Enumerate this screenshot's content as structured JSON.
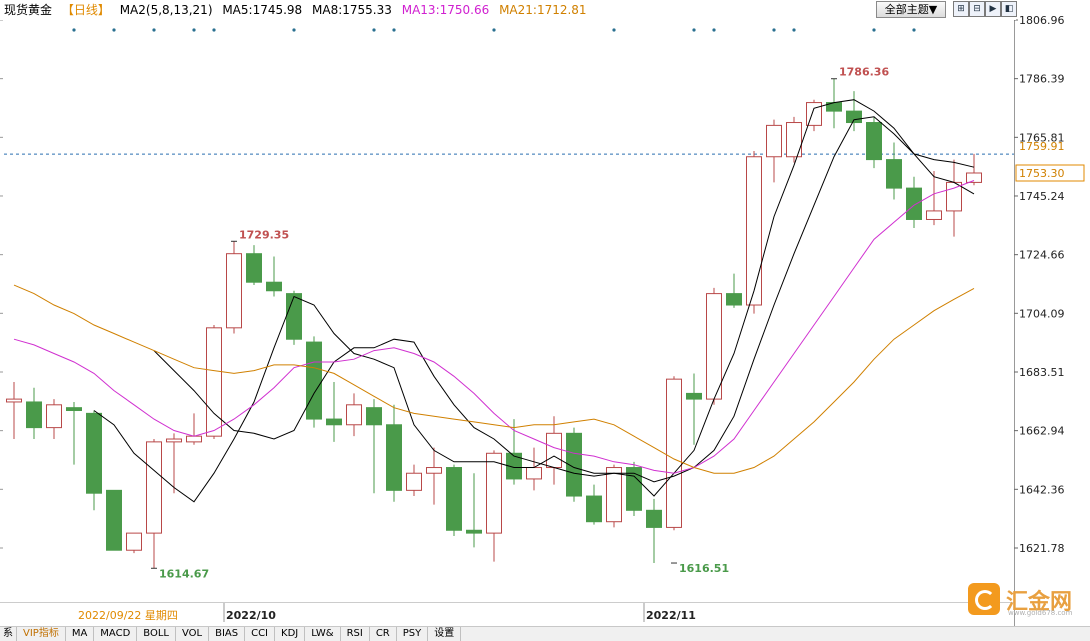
{
  "header": {
    "instrument": "现货黄金",
    "period": "【日线】",
    "ma2_label": "MA2(5,8,13,21)",
    "ma5_label": "MA5:1745.98",
    "ma8_label": "MA8:1755.33",
    "ma13_label": "MA13:1750.66",
    "ma21_label": "MA21:1712.81",
    "theme_button": "全部主题▼"
  },
  "footer": {
    "date_label": "2022/09/22 星期四",
    "tabs": [
      "系",
      "VIP指标",
      "MA",
      "MACD",
      "BOLL",
      "VOL",
      "BIAS",
      "CCI",
      "KDJ",
      "LW&",
      "RSI",
      "CR",
      "PSY",
      "设置"
    ]
  },
  "logo": {
    "text": "汇金网",
    "sub": "www.gold678.com"
  },
  "colors": {
    "up": "#b84848",
    "down": "#4a9a4a",
    "ma5": "#000000",
    "ma8": "#000000",
    "ma13": "#d030d0",
    "ma21": "#d08000"
  },
  "chart_data": {
    "type": "candlestick",
    "yaxis_ticks": [
      "1806.96",
      "1786.39",
      "1765.81",
      "1745.24",
      "1724.66",
      "1704.09",
      "1683.51",
      "1662.94",
      "1642.36",
      "1621.78"
    ],
    "ylim": [
      1612,
      1812
    ],
    "xaxis_labels": [
      {
        "label": "2022/10",
        "index": 11
      },
      {
        "label": "2022/11",
        "index": 32
      }
    ],
    "price_tags": {
      "upper": "1759.91",
      "current": "1753.30"
    },
    "annotations": [
      {
        "text": "1614.67",
        "index": 7,
        "value": 1614.67,
        "kind": "low"
      },
      {
        "text": "1729.35",
        "index": 11,
        "value": 1729.35,
        "kind": "high"
      },
      {
        "text": "1616.51",
        "index": 33,
        "value": 1616.51,
        "kind": "low"
      },
      {
        "text": "1786.36",
        "index": 41,
        "value": 1786.36,
        "kind": "high"
      }
    ],
    "candles": [
      {
        "o": 1673,
        "h": 1680,
        "l": 1660,
        "c": 1674
      },
      {
        "o": 1673,
        "h": 1678,
        "l": 1660,
        "c": 1664
      },
      {
        "o": 1664,
        "h": 1674,
        "l": 1660,
        "c": 1672
      },
      {
        "o": 1671,
        "h": 1673,
        "l": 1651,
        "c": 1670
      },
      {
        "o": 1669,
        "h": 1670,
        "l": 1635,
        "c": 1641
      },
      {
        "o": 1642,
        "h": 1642,
        "l": 1621,
        "c": 1621
      },
      {
        "o": 1621,
        "h": 1627,
        "l": 1620,
        "c": 1627
      },
      {
        "o": 1627,
        "h": 1660,
        "l": 1614.67,
        "c": 1659
      },
      {
        "o": 1659,
        "h": 1662,
        "l": 1641,
        "c": 1660
      },
      {
        "o": 1659,
        "h": 1669,
        "l": 1658,
        "c": 1661
      },
      {
        "o": 1661,
        "h": 1700,
        "l": 1660,
        "c": 1699
      },
      {
        "o": 1699,
        "h": 1729.35,
        "l": 1697,
        "c": 1725
      },
      {
        "o": 1725,
        "h": 1728,
        "l": 1714,
        "c": 1715
      },
      {
        "o": 1715,
        "h": 1724,
        "l": 1710,
        "c": 1712
      },
      {
        "o": 1711,
        "h": 1712,
        "l": 1693,
        "c": 1695
      },
      {
        "o": 1694,
        "h": 1696,
        "l": 1664,
        "c": 1667
      },
      {
        "o": 1667,
        "h": 1680,
        "l": 1659,
        "c": 1665
      },
      {
        "o": 1665,
        "h": 1676,
        "l": 1661,
        "c": 1672
      },
      {
        "o": 1671,
        "h": 1674,
        "l": 1641,
        "c": 1665
      },
      {
        "o": 1665,
        "h": 1672,
        "l": 1638,
        "c": 1642
      },
      {
        "o": 1642,
        "h": 1651,
        "l": 1640,
        "c": 1648
      },
      {
        "o": 1648,
        "h": 1657,
        "l": 1637,
        "c": 1650
      },
      {
        "o": 1650,
        "h": 1651,
        "l": 1626,
        "c": 1628
      },
      {
        "o": 1628,
        "h": 1648,
        "l": 1622,
        "c": 1627
      },
      {
        "o": 1627,
        "h": 1656,
        "l": 1617,
        "c": 1655
      },
      {
        "o": 1655,
        "h": 1667,
        "l": 1644,
        "c": 1646
      },
      {
        "o": 1646,
        "h": 1657,
        "l": 1642,
        "c": 1650
      },
      {
        "o": 1650,
        "h": 1668,
        "l": 1644,
        "c": 1662
      },
      {
        "o": 1662,
        "h": 1664,
        "l": 1638,
        "c": 1640
      },
      {
        "o": 1640,
        "h": 1644,
        "l": 1630,
        "c": 1631
      },
      {
        "o": 1631,
        "h": 1651,
        "l": 1629,
        "c": 1650
      },
      {
        "o": 1650,
        "h": 1652,
        "l": 1633,
        "c": 1635
      },
      {
        "o": 1635,
        "h": 1639,
        "l": 1616.51,
        "c": 1629
      },
      {
        "o": 1629,
        "h": 1682,
        "l": 1628,
        "c": 1681
      },
      {
        "o": 1676,
        "h": 1683,
        "l": 1658,
        "c": 1674
      },
      {
        "o": 1674,
        "h": 1713,
        "l": 1672,
        "c": 1711
      },
      {
        "o": 1711,
        "h": 1718,
        "l": 1706,
        "c": 1707
      },
      {
        "o": 1707,
        "h": 1761,
        "l": 1704,
        "c": 1759
      },
      {
        "o": 1759,
        "h": 1772,
        "l": 1750,
        "c": 1770
      },
      {
        "o": 1759,
        "h": 1773,
        "l": 1757,
        "c": 1771
      },
      {
        "o": 1770,
        "h": 1779,
        "l": 1768,
        "c": 1778
      },
      {
        "o": 1778,
        "h": 1786.36,
        "l": 1769,
        "c": 1775
      },
      {
        "o": 1775,
        "h": 1782,
        "l": 1768,
        "c": 1771
      },
      {
        "o": 1771,
        "h": 1773,
        "l": 1755,
        "c": 1758
      },
      {
        "o": 1758,
        "h": 1764,
        "l": 1744,
        "c": 1748
      },
      {
        "o": 1748,
        "h": 1752,
        "l": 1734,
        "c": 1737
      },
      {
        "o": 1737,
        "h": 1754,
        "l": 1735,
        "c": 1740
      },
      {
        "o": 1740,
        "h": 1758,
        "l": 1731,
        "c": 1750
      },
      {
        "o": 1750,
        "h": 1760,
        "l": 1749,
        "c": 1753.3
      }
    ],
    "series": [
      {
        "key": "ma5",
        "values": [
          null,
          null,
          null,
          null,
          1670,
          1665,
          1655,
          1649,
          1643,
          1638,
          1648,
          1660,
          1673,
          1692,
          1710,
          1707,
          1697,
          1690,
          1688,
          1685,
          1665,
          1656,
          1652,
          1652,
          1652,
          1650,
          1650,
          1654,
          1650,
          1648,
          1648,
          1647,
          1640,
          1648,
          1656,
          1674,
          1690,
          1712,
          1738,
          1756,
          1776,
          1778,
          1779,
          1775,
          1769,
          1760,
          1752,
          1750,
          1745.98
        ]
      },
      {
        "key": "ma8",
        "values": [
          null,
          null,
          null,
          null,
          null,
          null,
          null,
          1691,
          1684,
          1677,
          1669,
          1663,
          1662,
          1660,
          1663,
          1676,
          1687,
          1692,
          1692,
          1695,
          1694,
          1682,
          1672,
          1664,
          1660,
          1654,
          1652,
          1650,
          1648,
          1647,
          1648,
          1648,
          1645,
          1647,
          1650,
          1656,
          1668,
          1688,
          1707,
          1725,
          1742,
          1759,
          1772,
          1773,
          1767,
          1760,
          1758,
          1757,
          1755.33
        ]
      },
      {
        "key": "ma13",
        "values": [
          1695,
          1693,
          1690,
          1687,
          1683,
          1677,
          1672,
          1667,
          1663,
          1661,
          1663,
          1667,
          1672,
          1678,
          1685,
          1687,
          1687,
          1688,
          1691,
          1692,
          1690,
          1687,
          1682,
          1676,
          1669,
          1663,
          1660,
          1657,
          1655,
          1654,
          1652,
          1651,
          1649,
          1648,
          1650,
          1654,
          1660,
          1670,
          1680,
          1690,
          1700,
          1710,
          1720,
          1730,
          1736,
          1742,
          1746,
          1748,
          1750.66
        ]
      },
      {
        "key": "ma21",
        "values": [
          1714,
          1711,
          1707,
          1704,
          1700,
          1697,
          1694,
          1691,
          1688,
          1685,
          1684,
          1683,
          1684,
          1686,
          1686,
          1685,
          1683,
          1679,
          1675,
          1671,
          1669,
          1668,
          1667,
          1666,
          1665,
          1664,
          1665,
          1665,
          1666,
          1667,
          1665,
          1661,
          1657,
          1653,
          1650,
          1648,
          1648,
          1650,
          1654,
          1660,
          1666,
          1673,
          1680,
          1688,
          1695,
          1700,
          1705,
          1709,
          1712.81
        ]
      }
    ],
    "marker_dots_at": [
      3,
      5,
      7,
      9,
      10,
      14,
      18,
      19,
      24,
      30,
      34,
      35,
      38,
      39,
      43,
      45
    ]
  }
}
